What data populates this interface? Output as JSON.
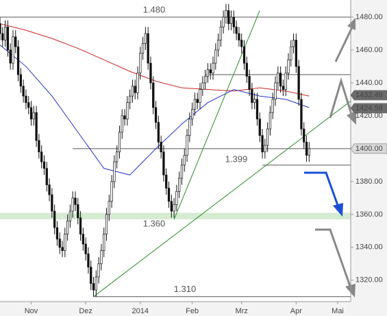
{
  "chart_data": {
    "type": "candlestick",
    "x": [
      0,
      1,
      2,
      3,
      4,
      5,
      6,
      7,
      8,
      9,
      10,
      11,
      12,
      13,
      14,
      15,
      16,
      17,
      18,
      19,
      20,
      21,
      22,
      23,
      24,
      25,
      26,
      27,
      28,
      29,
      30,
      31,
      32,
      33,
      34,
      35,
      36,
      37,
      38,
      39,
      40,
      41,
      42,
      43,
      44,
      45,
      46,
      47,
      48,
      49,
      50,
      51,
      52,
      53,
      54,
      55,
      56,
      57,
      58,
      59,
      60,
      61,
      62,
      63,
      64,
      65,
      66,
      67,
      68,
      69,
      70,
      71,
      72,
      73,
      74,
      75,
      76,
      77,
      78,
      79,
      80,
      81,
      82,
      83,
      84,
      85,
      86,
      87,
      88,
      89,
      90,
      91,
      92,
      93,
      94,
      95,
      96,
      97,
      98,
      99,
      100,
      101,
      102,
      103,
      104,
      105,
      106,
      107,
      108,
      109,
      110,
      111,
      112,
      113,
      114,
      115,
      116,
      117,
      118,
      119
    ],
    "open": [
      1476,
      1470,
      1466,
      1474,
      1460,
      1452,
      1468,
      1462,
      1445,
      1438,
      1432,
      1428,
      1425,
      1418,
      1422,
      1405,
      1398,
      1392,
      1388,
      1378,
      1372,
      1362,
      1352,
      1345,
      1340,
      1338,
      1348,
      1356,
      1362,
      1370,
      1366,
      1358,
      1348,
      1342,
      1336,
      1328,
      1318,
      1314,
      1322,
      1330,
      1338,
      1348,
      1360,
      1368,
      1380,
      1392,
      1398,
      1410,
      1420,
      1418,
      1428,
      1432,
      1438,
      1434,
      1446,
      1458,
      1464,
      1470,
      1452,
      1440,
      1425,
      1416,
      1404,
      1398,
      1384,
      1376,
      1368,
      1362,
      1366,
      1374,
      1382,
      1390,
      1396,
      1408,
      1418,
      1424,
      1430,
      1428,
      1436,
      1440,
      1444,
      1448,
      1446,
      1452,
      1460,
      1466,
      1474,
      1480,
      1484,
      1476,
      1480,
      1474,
      1470,
      1466,
      1462,
      1452,
      1444,
      1436,
      1428,
      1430,
      1418,
      1408,
      1398,
      1402,
      1412,
      1422,
      1430,
      1440,
      1446,
      1438,
      1436,
      1446,
      1454,
      1462,
      1466,
      1450,
      1430,
      1412,
      1404,
      1396
    ],
    "high": [
      1480,
      1474,
      1478,
      1478,
      1464,
      1472,
      1472,
      1466,
      1449,
      1442,
      1436,
      1432,
      1429,
      1426,
      1426,
      1409,
      1402,
      1396,
      1392,
      1382,
      1376,
      1366,
      1356,
      1349,
      1344,
      1352,
      1360,
      1366,
      1374,
      1374,
      1370,
      1362,
      1352,
      1346,
      1340,
      1332,
      1322,
      1326,
      1334,
      1342,
      1352,
      1364,
      1372,
      1384,
      1396,
      1402,
      1414,
      1424,
      1424,
      1432,
      1436,
      1442,
      1442,
      1450,
      1462,
      1468,
      1474,
      1474,
      1456,
      1444,
      1429,
      1420,
      1408,
      1402,
      1388,
      1380,
      1372,
      1370,
      1378,
      1386,
      1394,
      1400,
      1412,
      1422,
      1428,
      1434,
      1434,
      1440,
      1444,
      1448,
      1452,
      1452,
      1456,
      1464,
      1470,
      1478,
      1484,
      1488,
      1488,
      1484,
      1484,
      1478,
      1474,
      1470,
      1466,
      1456,
      1448,
      1440,
      1434,
      1434,
      1422,
      1412,
      1406,
      1416,
      1426,
      1434,
      1444,
      1450,
      1450,
      1442,
      1450,
      1458,
      1466,
      1470,
      1470,
      1454,
      1434,
      1416,
      1408,
      1404
    ],
    "low": [
      1466,
      1462,
      1462,
      1456,
      1448,
      1448,
      1458,
      1441,
      1434,
      1428,
      1424,
      1421,
      1414,
      1414,
      1401,
      1394,
      1388,
      1384,
      1374,
      1368,
      1358,
      1348,
      1341,
      1336,
      1334,
      1334,
      1344,
      1352,
      1358,
      1362,
      1354,
      1344,
      1338,
      1332,
      1324,
      1314,
      1310,
      1310,
      1318,
      1326,
      1334,
      1344,
      1356,
      1364,
      1376,
      1388,
      1394,
      1406,
      1414,
      1414,
      1424,
      1428,
      1430,
      1430,
      1442,
      1454,
      1460,
      1448,
      1436,
      1421,
      1412,
      1400,
      1394,
      1380,
      1372,
      1364,
      1358,
      1358,
      1362,
      1370,
      1378,
      1386,
      1392,
      1404,
      1414,
      1420,
      1424,
      1424,
      1432,
      1436,
      1440,
      1442,
      1442,
      1448,
      1456,
      1462,
      1470,
      1476,
      1472,
      1472,
      1470,
      1466,
      1462,
      1458,
      1448,
      1440,
      1432,
      1424,
      1424,
      1414,
      1404,
      1394,
      1394,
      1398,
      1408,
      1418,
      1426,
      1436,
      1434,
      1432,
      1432,
      1442,
      1450,
      1458,
      1446,
      1426,
      1408,
      1400,
      1392,
      1392
    ],
    "close": [
      1470,
      1466,
      1474,
      1460,
      1452,
      1468,
      1462,
      1445,
      1438,
      1432,
      1428,
      1425,
      1418,
      1422,
      1405,
      1398,
      1392,
      1388,
      1378,
      1372,
      1362,
      1352,
      1345,
      1340,
      1338,
      1348,
      1356,
      1362,
      1370,
      1366,
      1358,
      1348,
      1342,
      1336,
      1328,
      1318,
      1314,
      1322,
      1330,
      1338,
      1348,
      1360,
      1368,
      1380,
      1392,
      1398,
      1410,
      1420,
      1418,
      1428,
      1432,
      1438,
      1434,
      1446,
      1458,
      1464,
      1470,
      1452,
      1440,
      1425,
      1416,
      1404,
      1398,
      1384,
      1376,
      1368,
      1362,
      1366,
      1374,
      1382,
      1390,
      1396,
      1408,
      1418,
      1424,
      1430,
      1428,
      1436,
      1440,
      1444,
      1448,
      1446,
      1452,
      1460,
      1466,
      1474,
      1480,
      1484,
      1476,
      1480,
      1474,
      1470,
      1466,
      1462,
      1452,
      1444,
      1436,
      1428,
      1430,
      1418,
      1408,
      1398,
      1402,
      1412,
      1422,
      1430,
      1440,
      1446,
      1438,
      1436,
      1446,
      1454,
      1462,
      1466,
      1450,
      1430,
      1412,
      1404,
      1396,
      1400
    ],
    "moving_averages": [
      {
        "color": "#cc2222",
        "x": [
          0,
          10,
          20,
          30,
          40,
          50,
          60,
          70,
          80,
          90,
          100,
          110,
          119
        ],
        "values": [
          1476,
          1472,
          1467,
          1461,
          1454,
          1447,
          1441,
          1437,
          1436,
          1435,
          1437,
          1435,
          1432
        ]
      },
      {
        "color": "#2233cc",
        "x": [
          0,
          10,
          20,
          30,
          40,
          50,
          60,
          70,
          80,
          90,
          100,
          110,
          119
        ],
        "values": [
          1463,
          1450,
          1432,
          1410,
          1388,
          1384,
          1400,
          1415,
          1428,
          1436,
          1432,
          1430,
          1425
        ]
      }
    ],
    "levels": [
      {
        "value": 1480,
        "from": 0
      },
      {
        "value": 1445,
        "from": 79
      },
      {
        "value": 1400,
        "from": 28
      },
      {
        "value": 1390,
        "from": 101
      },
      {
        "value": 1310,
        "from": 36
      }
    ],
    "zone": [
      1357,
      1361
    ],
    "trendlines": [
      [
        [
          36,
          1310
        ],
        [
          135,
          1429
        ]
      ],
      [
        [
          67,
          1357
        ],
        [
          100,
          1484
        ]
      ]
    ],
    "annotations": [
      {
        "text": "1.480",
        "value": 1480
      },
      {
        "text": "1.399",
        "value": 1399
      },
      {
        "text": "1.360",
        "value": 1360
      },
      {
        "text": "1.310",
        "value": 1310
      }
    ],
    "price_tags": [
      {
        "value": 1432.49,
        "label": "1432.49",
        "color": "#6b6b6b"
      },
      {
        "value": 1424.58,
        "label": "1424.58",
        "color": "#6b6b6b"
      },
      {
        "value": 1400,
        "label": "1400.00",
        "color": "#d9d9d9"
      }
    ],
    "xlim": [
      0,
      135
    ],
    "xticks": [
      {
        "value": 12,
        "label": "Nov"
      },
      {
        "value": 33,
        "label": "Dez"
      },
      {
        "value": 54,
        "label": "2014"
      },
      {
        "value": 74,
        "label": "Feb"
      },
      {
        "value": 93,
        "label": "Mrz"
      },
      {
        "value": 114,
        "label": "Apr"
      },
      {
        "value": 130,
        "label": "Mai"
      }
    ],
    "ylim": [
      1307,
      1490.4
    ],
    "yticks": [
      {
        "value": 1320,
        "label": "1320.00"
      },
      {
        "value": 1340,
        "label": "1340.00"
      },
      {
        "value": 1360,
        "label": "1360.00"
      },
      {
        "value": 1380,
        "label": "1380.00"
      },
      {
        "value": 1400,
        "label": "1400.00"
      },
      {
        "value": 1420,
        "label": "1420.00"
      },
      {
        "value": 1440,
        "label": "1440.00"
      },
      {
        "value": 1460,
        "label": "1460.00"
      },
      {
        "value": 1480,
        "label": "1480.00"
      }
    ]
  }
}
